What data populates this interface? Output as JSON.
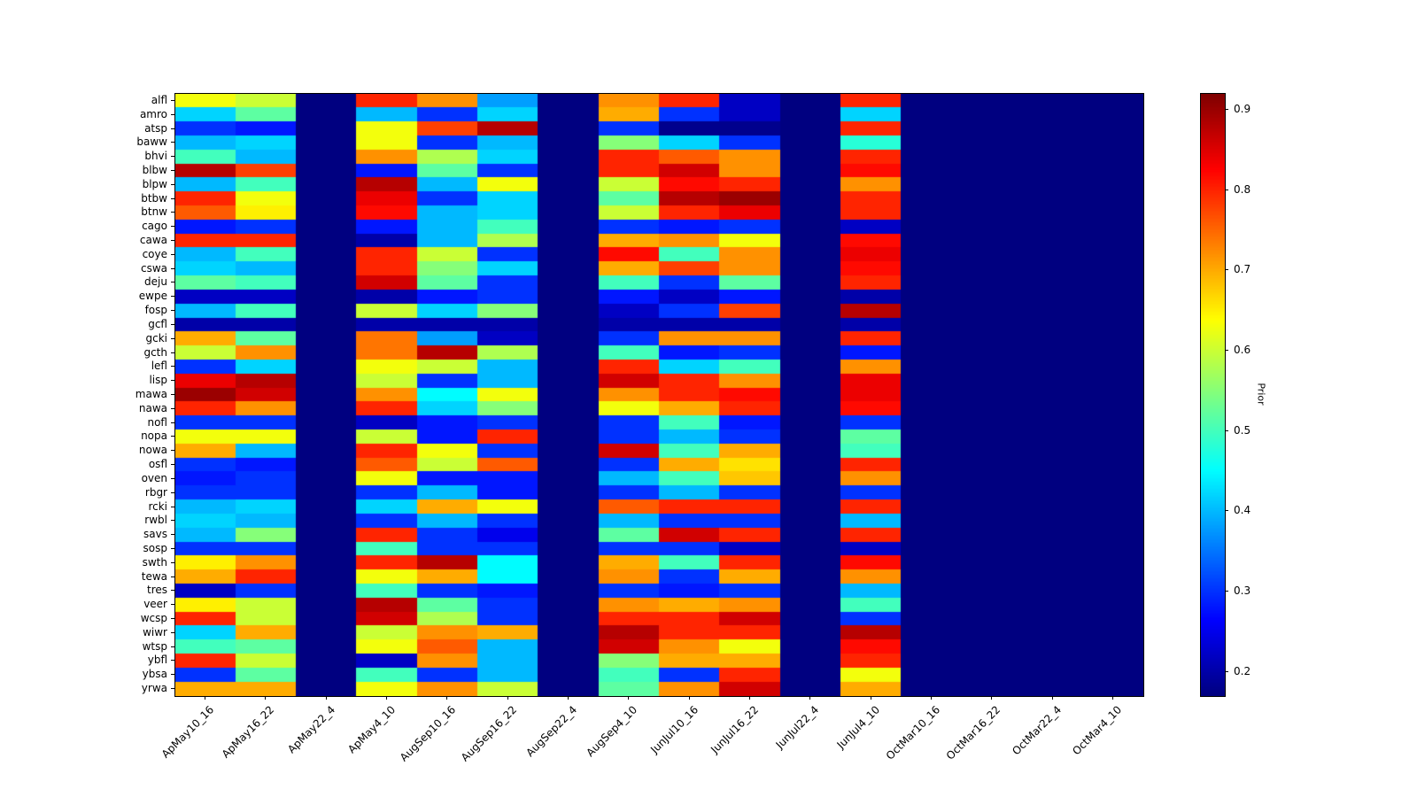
{
  "figure": {
    "background": "#ffffff"
  },
  "chart_data": {
    "type": "heatmap",
    "colormap": "jet",
    "vmin": 0.17,
    "vmax": 0.92,
    "title": "",
    "xlabel": "",
    "ylabel": "",
    "grid": false,
    "columns": [
      "ApMay10_16",
      "ApMay16_22",
      "ApMay22_4",
      "ApMay4_10",
      "AugSep10_16",
      "AugSep16_22",
      "AugSep22_4",
      "AugSep4_10",
      "JunJul10_16",
      "JunJul16_22",
      "JunJul22_4",
      "JunJul4_10",
      "OctMar10_16",
      "OctMar16_22",
      "OctMar22_4",
      "OctMar4_10"
    ],
    "rows": [
      "alfl",
      "amro",
      "atsp",
      "baww",
      "bhvi",
      "blbw",
      "blpw",
      "btbw",
      "btnw",
      "cago",
      "cawa",
      "coye",
      "cswa",
      "deju",
      "ewpe",
      "fosp",
      "gcfl",
      "gcki",
      "gcth",
      "lefl",
      "lisp",
      "mawa",
      "nawa",
      "nofl",
      "nopa",
      "nowa",
      "osfl",
      "oven",
      "rbgr",
      "rcki",
      "rwbl",
      "savs",
      "sosp",
      "swth",
      "tewa",
      "tres",
      "veer",
      "wcsp",
      "wiwr",
      "wtsp",
      "ybfl",
      "ybsa",
      "yrwa"
    ],
    "values": [
      [
        0.63,
        0.6,
        0.17,
        0.8,
        0.72,
        0.38,
        0.17,
        0.72,
        0.8,
        0.22,
        0.17,
        0.8,
        0.17,
        0.17,
        0.17,
        0.17
      ],
      [
        0.42,
        0.52,
        0.17,
        0.4,
        0.3,
        0.42,
        0.17,
        0.7,
        0.3,
        0.22,
        0.17,
        0.42,
        0.17,
        0.17,
        0.17,
        0.17
      ],
      [
        0.3,
        0.28,
        0.17,
        0.63,
        0.78,
        0.88,
        0.17,
        0.3,
        0.18,
        0.18,
        0.17,
        0.8,
        0.17,
        0.17,
        0.17,
        0.17
      ],
      [
        0.4,
        0.42,
        0.17,
        0.63,
        0.3,
        0.4,
        0.17,
        0.55,
        0.42,
        0.3,
        0.17,
        0.48,
        0.17,
        0.17,
        0.17,
        0.17
      ],
      [
        0.5,
        0.4,
        0.17,
        0.72,
        0.58,
        0.42,
        0.17,
        0.8,
        0.76,
        0.72,
        0.17,
        0.8,
        0.17,
        0.17,
        0.17,
        0.17
      ],
      [
        0.88,
        0.78,
        0.17,
        0.28,
        0.52,
        0.3,
        0.17,
        0.8,
        0.86,
        0.72,
        0.17,
        0.82,
        0.17,
        0.17,
        0.17,
        0.17
      ],
      [
        0.4,
        0.5,
        0.17,
        0.88,
        0.4,
        0.63,
        0.17,
        0.6,
        0.82,
        0.8,
        0.17,
        0.72,
        0.17,
        0.17,
        0.17,
        0.17
      ],
      [
        0.8,
        0.63,
        0.17,
        0.84,
        0.3,
        0.42,
        0.17,
        0.52,
        0.88,
        0.9,
        0.17,
        0.8,
        0.17,
        0.17,
        0.17,
        0.17
      ],
      [
        0.76,
        0.65,
        0.17,
        0.82,
        0.4,
        0.42,
        0.17,
        0.6,
        0.8,
        0.84,
        0.17,
        0.8,
        0.17,
        0.17,
        0.17,
        0.17
      ],
      [
        0.28,
        0.3,
        0.17,
        0.28,
        0.4,
        0.5,
        0.17,
        0.3,
        0.28,
        0.3,
        0.17,
        0.22,
        0.17,
        0.17,
        0.17,
        0.17
      ],
      [
        0.8,
        0.8,
        0.17,
        0.2,
        0.4,
        0.58,
        0.17,
        0.7,
        0.72,
        0.63,
        0.17,
        0.82,
        0.17,
        0.17,
        0.17,
        0.17
      ],
      [
        0.4,
        0.5,
        0.17,
        0.8,
        0.6,
        0.3,
        0.17,
        0.82,
        0.5,
        0.72,
        0.17,
        0.84,
        0.17,
        0.17,
        0.17,
        0.17
      ],
      [
        0.42,
        0.4,
        0.17,
        0.8,
        0.55,
        0.42,
        0.17,
        0.7,
        0.78,
        0.72,
        0.17,
        0.82,
        0.17,
        0.17,
        0.17,
        0.17
      ],
      [
        0.52,
        0.5,
        0.17,
        0.86,
        0.52,
        0.3,
        0.17,
        0.5,
        0.3,
        0.52,
        0.17,
        0.8,
        0.17,
        0.17,
        0.17,
        0.17
      ],
      [
        0.22,
        0.22,
        0.17,
        0.2,
        0.28,
        0.3,
        0.17,
        0.28,
        0.22,
        0.28,
        0.17,
        0.2,
        0.17,
        0.17,
        0.17,
        0.17
      ],
      [
        0.4,
        0.5,
        0.17,
        0.6,
        0.42,
        0.55,
        0.17,
        0.22,
        0.3,
        0.78,
        0.17,
        0.88,
        0.17,
        0.17,
        0.17,
        0.17
      ],
      [
        0.2,
        0.2,
        0.17,
        0.2,
        0.2,
        0.2,
        0.17,
        0.2,
        0.2,
        0.2,
        0.17,
        0.2,
        0.17,
        0.17,
        0.17,
        0.17
      ],
      [
        0.7,
        0.52,
        0.17,
        0.74,
        0.38,
        0.22,
        0.17,
        0.3,
        0.72,
        0.72,
        0.17,
        0.8,
        0.17,
        0.17,
        0.17,
        0.17
      ],
      [
        0.6,
        0.72,
        0.17,
        0.74,
        0.88,
        0.58,
        0.17,
        0.5,
        0.28,
        0.3,
        0.17,
        0.28,
        0.17,
        0.17,
        0.17,
        0.17
      ],
      [
        0.3,
        0.42,
        0.17,
        0.63,
        0.6,
        0.4,
        0.17,
        0.8,
        0.42,
        0.5,
        0.17,
        0.72,
        0.17,
        0.17,
        0.17,
        0.17
      ],
      [
        0.84,
        0.88,
        0.17,
        0.6,
        0.3,
        0.4,
        0.17,
        0.86,
        0.8,
        0.72,
        0.17,
        0.84,
        0.17,
        0.17,
        0.17,
        0.17
      ],
      [
        0.9,
        0.86,
        0.17,
        0.72,
        0.45,
        0.63,
        0.17,
        0.72,
        0.8,
        0.82,
        0.17,
        0.84,
        0.17,
        0.17,
        0.17,
        0.17
      ],
      [
        0.8,
        0.72,
        0.17,
        0.8,
        0.42,
        0.55,
        0.17,
        0.63,
        0.7,
        0.8,
        0.17,
        0.82,
        0.17,
        0.17,
        0.17,
        0.17
      ],
      [
        0.3,
        0.3,
        0.17,
        0.22,
        0.28,
        0.3,
        0.17,
        0.3,
        0.5,
        0.28,
        0.17,
        0.3,
        0.17,
        0.17,
        0.17,
        0.17
      ],
      [
        0.63,
        0.63,
        0.17,
        0.6,
        0.28,
        0.8,
        0.17,
        0.3,
        0.4,
        0.3,
        0.17,
        0.52,
        0.17,
        0.17,
        0.17,
        0.17
      ],
      [
        0.7,
        0.4,
        0.17,
        0.8,
        0.63,
        0.3,
        0.17,
        0.86,
        0.5,
        0.7,
        0.17,
        0.5,
        0.17,
        0.17,
        0.17,
        0.17
      ],
      [
        0.3,
        0.28,
        0.17,
        0.76,
        0.6,
        0.76,
        0.17,
        0.3,
        0.7,
        0.66,
        0.17,
        0.8,
        0.17,
        0.17,
        0.17,
        0.17
      ],
      [
        0.28,
        0.3,
        0.17,
        0.63,
        0.28,
        0.28,
        0.17,
        0.4,
        0.5,
        0.68,
        0.17,
        0.72,
        0.17,
        0.17,
        0.17,
        0.17
      ],
      [
        0.3,
        0.3,
        0.17,
        0.3,
        0.4,
        0.28,
        0.17,
        0.3,
        0.4,
        0.3,
        0.17,
        0.3,
        0.17,
        0.17,
        0.17,
        0.17
      ],
      [
        0.4,
        0.42,
        0.17,
        0.42,
        0.7,
        0.63,
        0.17,
        0.76,
        0.8,
        0.8,
        0.17,
        0.8,
        0.17,
        0.17,
        0.17,
        0.17
      ],
      [
        0.42,
        0.4,
        0.17,
        0.3,
        0.4,
        0.3,
        0.17,
        0.4,
        0.3,
        0.3,
        0.17,
        0.4,
        0.17,
        0.17,
        0.17,
        0.17
      ],
      [
        0.4,
        0.55,
        0.17,
        0.8,
        0.3,
        0.25,
        0.17,
        0.52,
        0.86,
        0.8,
        0.17,
        0.8,
        0.17,
        0.17,
        0.17,
        0.17
      ],
      [
        0.3,
        0.3,
        0.17,
        0.5,
        0.3,
        0.3,
        0.17,
        0.3,
        0.3,
        0.22,
        0.17,
        0.22,
        0.17,
        0.17,
        0.17,
        0.17
      ],
      [
        0.65,
        0.72,
        0.17,
        0.8,
        0.88,
        0.45,
        0.17,
        0.7,
        0.5,
        0.8,
        0.17,
        0.82,
        0.17,
        0.17,
        0.17,
        0.17
      ],
      [
        0.7,
        0.8,
        0.17,
        0.63,
        0.7,
        0.45,
        0.17,
        0.72,
        0.3,
        0.7,
        0.17,
        0.72,
        0.17,
        0.17,
        0.17,
        0.17
      ],
      [
        0.22,
        0.3,
        0.17,
        0.5,
        0.3,
        0.28,
        0.17,
        0.3,
        0.28,
        0.3,
        0.17,
        0.4,
        0.17,
        0.17,
        0.17,
        0.17
      ],
      [
        0.65,
        0.6,
        0.17,
        0.88,
        0.52,
        0.3,
        0.17,
        0.72,
        0.7,
        0.72,
        0.17,
        0.5,
        0.17,
        0.17,
        0.17,
        0.17
      ],
      [
        0.8,
        0.6,
        0.17,
        0.86,
        0.58,
        0.3,
        0.17,
        0.8,
        0.8,
        0.86,
        0.17,
        0.3,
        0.17,
        0.17,
        0.17,
        0.17
      ],
      [
        0.42,
        0.7,
        0.17,
        0.6,
        0.72,
        0.7,
        0.17,
        0.88,
        0.8,
        0.8,
        0.17,
        0.88,
        0.17,
        0.17,
        0.17,
        0.17
      ],
      [
        0.5,
        0.52,
        0.17,
        0.63,
        0.76,
        0.4,
        0.17,
        0.86,
        0.72,
        0.63,
        0.17,
        0.82,
        0.17,
        0.17,
        0.17,
        0.17
      ],
      [
        0.8,
        0.6,
        0.17,
        0.22,
        0.72,
        0.4,
        0.17,
        0.55,
        0.7,
        0.7,
        0.17,
        0.8,
        0.17,
        0.17,
        0.17,
        0.17
      ],
      [
        0.3,
        0.52,
        0.17,
        0.5,
        0.3,
        0.4,
        0.17,
        0.5,
        0.3,
        0.8,
        0.17,
        0.63,
        0.17,
        0.17,
        0.17,
        0.17
      ],
      [
        0.7,
        0.7,
        0.17,
        0.63,
        0.72,
        0.6,
        0.17,
        0.52,
        0.72,
        0.86,
        0.17,
        0.7,
        0.17,
        0.17,
        0.17,
        0.17
      ]
    ],
    "colorbar": {
      "label": "Prior",
      "ticks": [
        0.2,
        0.3,
        0.4,
        0.5,
        0.6,
        0.7,
        0.8,
        0.9
      ],
      "position": "right"
    }
  }
}
